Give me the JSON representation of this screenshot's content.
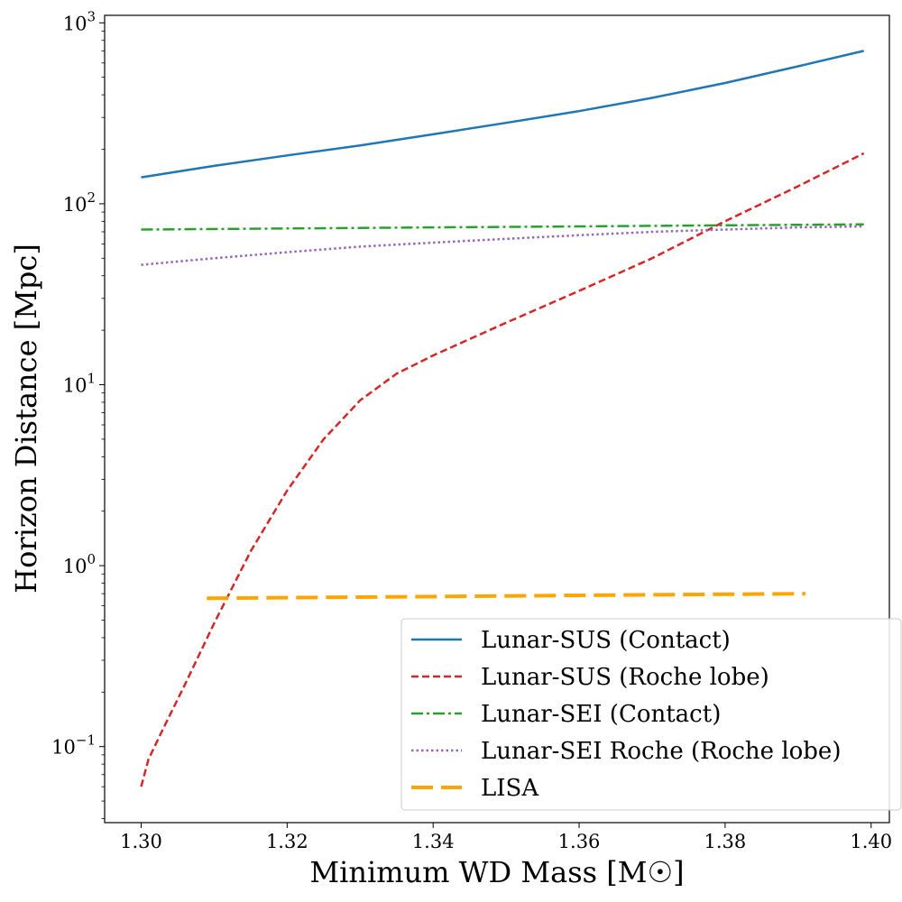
{
  "chart_data": {
    "type": "line",
    "xlabel": "Minimum WD Mass [M☉]",
    "ylabel": "Horizon Distance  [Mpc]",
    "yscale": "log",
    "xlim": [
      1.295,
      1.4025
    ],
    "ylim": [
      0.038,
      1100
    ],
    "xticks": [
      1.3,
      1.32,
      1.34,
      1.36,
      1.38,
      1.4
    ],
    "xtick_labels": [
      "1.30",
      "1.32",
      "1.34",
      "1.36",
      "1.38",
      "1.40"
    ],
    "yticks": [
      {
        "value": 0.1,
        "base": "10",
        "exp": "−1"
      },
      {
        "value": 1,
        "base": "10",
        "exp": "0"
      },
      {
        "value": 10,
        "base": "10",
        "exp": "1"
      },
      {
        "value": 100,
        "base": "10",
        "exp": "2"
      },
      {
        "value": 1000,
        "base": "10",
        "exp": "3"
      }
    ],
    "legend_position": "lower-right",
    "series": [
      {
        "name": "Lunar-SUS (Contact)",
        "color": "#1f77b4",
        "style": "solid",
        "x": [
          1.3,
          1.31,
          1.32,
          1.33,
          1.34,
          1.35,
          1.36,
          1.37,
          1.38,
          1.39,
          1.399
        ],
        "y": [
          140,
          162,
          185,
          210,
          242,
          280,
          325,
          385,
          465,
          575,
          700
        ]
      },
      {
        "name": "Lunar-SUS (Roche lobe)",
        "color": "#d62728",
        "style": "dashed",
        "x": [
          1.3,
          1.301,
          1.303,
          1.306,
          1.31,
          1.315,
          1.32,
          1.325,
          1.33,
          1.335,
          1.34,
          1.35,
          1.36,
          1.37,
          1.38,
          1.39,
          1.399
        ],
        "y": [
          0.06,
          0.085,
          0.125,
          0.22,
          0.48,
          1.2,
          2.6,
          5.0,
          8.2,
          11.5,
          14.5,
          22,
          33,
          50,
          80,
          125,
          190
        ]
      },
      {
        "name": "Lunar-SEI (Contact)",
        "color": "#2ca02c",
        "style": "dashdot",
        "x": [
          1.3,
          1.32,
          1.34,
          1.36,
          1.38,
          1.399
        ],
        "y": [
          72,
          73,
          74,
          75,
          76,
          77
        ]
      },
      {
        "name": "Lunar-SEI Roche (Roche lobe)",
        "color": "#9467bd",
        "style": "dotted",
        "x": [
          1.3,
          1.31,
          1.32,
          1.33,
          1.34,
          1.35,
          1.36,
          1.37,
          1.38,
          1.39,
          1.399
        ],
        "y": [
          46,
          50,
          54,
          58,
          61,
          64,
          67,
          70,
          72,
          74,
          75
        ]
      },
      {
        "name": "LISA",
        "color": "#ffa500",
        "style": "longdash",
        "x": [
          1.309,
          1.33,
          1.35,
          1.37,
          1.391
        ],
        "y": [
          0.66,
          0.67,
          0.68,
          0.69,
          0.7
        ]
      }
    ]
  }
}
